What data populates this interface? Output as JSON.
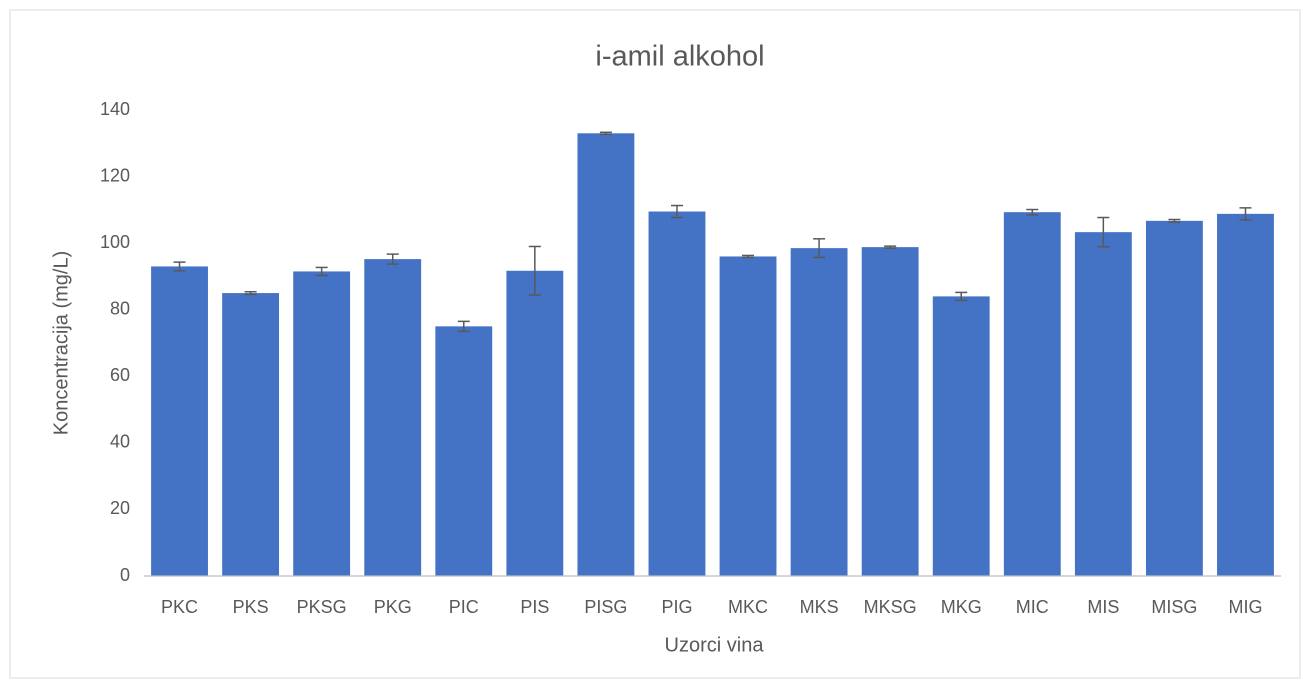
{
  "chart_data": {
    "type": "bar",
    "title": "i-amil alkohol",
    "x_label": "Uzorci vina",
    "y_label": "Koncentracija (mg/L)",
    "categories": [
      "PKC",
      "PKS",
      "PKSG",
      "PKG",
      "PIC",
      "PIS",
      "PISG",
      "PIG",
      "MKC",
      "MKS",
      "MKSG",
      "MKG",
      "MIC",
      "MIS",
      "MISG",
      "MIG"
    ],
    "values": [
      93,
      85,
      91.5,
      95.2,
      75,
      91.7,
      133,
      109.5,
      96,
      98.5,
      98.8,
      84,
      109.3,
      103.3,
      106.7,
      108.8
    ],
    "errors": [
      1.3,
      0.4,
      1.2,
      1.5,
      1.5,
      7.3,
      0.3,
      1.8,
      0.3,
      2.8,
      0.3,
      1.2,
      0.8,
      4.4,
      0.4,
      1.8
    ],
    "color": "#4472c4",
    "error_color": "#595959",
    "ylim": [
      0,
      140
    ],
    "yticks": [
      0,
      20,
      40,
      60,
      80,
      100,
      120,
      140
    ],
    "grid": false
  }
}
